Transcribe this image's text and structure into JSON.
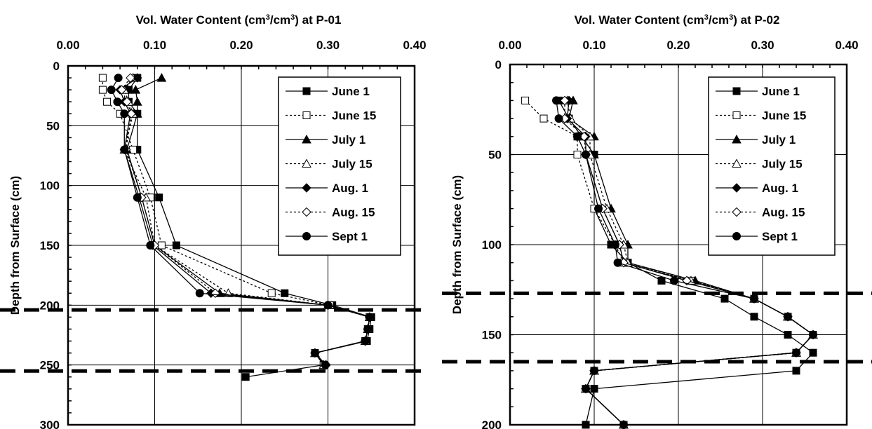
{
  "chart_data": [
    {
      "type": "line",
      "title_main": "Vol. Water Content (cm",
      "title_sup": "3",
      "title_mid": "/cm",
      "title_sup2": "3",
      "title_end": ") at P-01",
      "ylabel": "Depth from Surface (cm)",
      "xlim": [
        0.0,
        0.4
      ],
      "ylim": [
        0,
        300
      ],
      "y_inverted": true,
      "x_axis_position": "top",
      "xticks": [
        "0.00",
        "0.10",
        "0.20",
        "0.30",
        "0.40"
      ],
      "xtick_values": [
        0.0,
        0.1,
        0.2,
        0.3,
        0.4
      ],
      "yticks": [
        "0",
        "50",
        "100",
        "150",
        "200",
        "250",
        "300"
      ],
      "ytick_values": [
        0,
        50,
        100,
        150,
        200,
        250,
        300
      ],
      "grid": true,
      "legend_position": "top-right",
      "dashed_horizontal_lines": [
        204,
        255
      ],
      "series": [
        {
          "name": "June 1",
          "marker": "square",
          "filled": true,
          "dashed": false,
          "x": [
            0.08,
            0.07,
            0.07,
            0.08,
            0.08,
            0.105,
            0.125,
            0.25,
            0.305,
            0.35,
            0.348,
            0.345,
            0.285,
            0.295,
            0.205
          ],
          "y": [
            10,
            20,
            30,
            40,
            70,
            110,
            150,
            190,
            200,
            210,
            220,
            230,
            240,
            250,
            260
          ]
        },
        {
          "name": "June 15",
          "marker": "square",
          "filled": false,
          "dashed": true,
          "x": [
            0.04,
            0.04,
            0.045,
            0.06,
            0.075,
            0.095,
            0.108,
            0.235,
            0.302,
            0.348,
            0.346,
            0.343,
            0.285,
            0.295
          ],
          "y": [
            10,
            20,
            30,
            40,
            70,
            110,
            150,
            190,
            200,
            210,
            220,
            230,
            240,
            250
          ]
        },
        {
          "name": "July 1",
          "marker": "triangle",
          "filled": true,
          "dashed": false,
          "x": [
            0.108,
            0.078,
            0.08,
            0.08,
            0.068,
            0.085,
            0.1,
            0.175,
            0.3,
            0.348,
            0.346,
            0.343,
            0.285,
            0.295
          ],
          "y": [
            10,
            20,
            30,
            40,
            70,
            110,
            150,
            190,
            200,
            210,
            220,
            230,
            240,
            250
          ]
        },
        {
          "name": "July 15",
          "marker": "triangle",
          "filled": false,
          "dashed": true,
          "x": [
            0.075,
            0.065,
            0.07,
            0.075,
            0.065,
            0.09,
            0.1,
            0.185,
            0.3,
            0.348,
            0.346,
            0.343,
            0.285,
            0.295
          ],
          "y": [
            10,
            20,
            30,
            40,
            70,
            110,
            150,
            190,
            200,
            210,
            220,
            230,
            240,
            250
          ]
        },
        {
          "name": "Aug. 1",
          "marker": "diamond",
          "filled": true,
          "dashed": false,
          "x": [
            0.08,
            0.06,
            0.065,
            0.072,
            0.065,
            0.082,
            0.098,
            0.165,
            0.3,
            0.348,
            0.346,
            0.343,
            0.285,
            0.298
          ],
          "y": [
            10,
            20,
            30,
            40,
            70,
            110,
            150,
            190,
            200,
            210,
            220,
            230,
            240,
            250
          ]
        },
        {
          "name": "Aug. 15",
          "marker": "diamond",
          "filled": false,
          "dashed": true,
          "x": [
            0.072,
            0.062,
            0.068,
            0.073,
            0.067,
            0.085,
            0.1,
            0.17,
            0.3,
            0.348,
            0.346,
            0.343,
            0.285,
            0.297
          ],
          "y": [
            10,
            20,
            30,
            40,
            70,
            110,
            150,
            190,
            200,
            210,
            220,
            230,
            240,
            250
          ]
        },
        {
          "name": "Sept 1",
          "marker": "circle",
          "filled": true,
          "dashed": false,
          "x": [
            0.058,
            0.05,
            0.057,
            0.065,
            0.065,
            0.08,
            0.095,
            0.152,
            0.3,
            0.348,
            0.346,
            0.343,
            0.285,
            0.297
          ],
          "y": [
            10,
            20,
            30,
            40,
            70,
            110,
            150,
            190,
            200,
            210,
            220,
            230,
            240,
            250
          ]
        }
      ]
    },
    {
      "type": "line",
      "title_main": "Vol. Water Content (cm",
      "title_sup": "3",
      "title_mid": "/cm",
      "title_sup2": "3",
      "title_end": ") at P-02",
      "ylabel": "Depth from Surface (cm)",
      "xlim": [
        0.0,
        0.4
      ],
      "ylim": [
        0,
        200
      ],
      "y_inverted": true,
      "x_axis_position": "top",
      "xticks": [
        "0.00",
        "0.10",
        "0.20",
        "0.30",
        "0.40"
      ],
      "xtick_values": [
        0.0,
        0.1,
        0.2,
        0.3,
        0.4
      ],
      "yticks": [
        "0",
        "50",
        "100",
        "150",
        "200"
      ],
      "ytick_values": [
        0,
        50,
        100,
        150,
        200
      ],
      "grid": true,
      "legend_position": "top-right",
      "dashed_horizontal_lines": [
        127,
        165
      ],
      "series": [
        {
          "name": "June 1",
          "marker": "square",
          "filled": true,
          "dashed": false,
          "x": [
            0.058,
            0.07,
            0.085,
            0.1,
            0.1,
            0.12,
            0.14,
            0.18,
            0.255,
            0.29,
            0.33,
            0.36,
            0.34,
            0.1,
            0.09,
            0.135
          ],
          "y": [
            20,
            30,
            40,
            50,
            80,
            100,
            110,
            120,
            130,
            140,
            150,
            160,
            170,
            180,
            200,
            200
          ]
        },
        {
          "name": "June 15",
          "marker": "square",
          "filled": false,
          "dashed": true,
          "x": [
            0.018,
            0.04,
            0.08,
            0.08,
            0.1,
            0.125,
            0.135,
            0.215,
            0.29,
            0.33,
            0.36,
            0.34,
            0.1,
            0.09,
            0.135
          ],
          "y": [
            20,
            30,
            40,
            50,
            80,
            100,
            110,
            120,
            130,
            140,
            150,
            160,
            170,
            180,
            200
          ]
        },
        {
          "name": "July 1",
          "marker": "triangle",
          "filled": true,
          "dashed": false,
          "x": [
            0.075,
            0.07,
            0.1,
            0.1,
            0.12,
            0.14,
            0.14,
            0.22,
            0.29,
            0.33,
            0.36,
            0.34,
            0.1,
            0.09,
            0.135
          ],
          "y": [
            20,
            30,
            40,
            50,
            80,
            100,
            110,
            120,
            130,
            140,
            150,
            160,
            170,
            180,
            200
          ]
        },
        {
          "name": "July 15",
          "marker": "triangle",
          "filled": false,
          "dashed": true,
          "x": [
            0.068,
            0.072,
            0.095,
            0.095,
            0.115,
            0.135,
            0.14,
            0.215,
            0.29,
            0.33,
            0.36,
            0.34,
            0.1,
            0.09,
            0.135
          ],
          "y": [
            20,
            30,
            40,
            50,
            80,
            100,
            110,
            120,
            130,
            140,
            150,
            160,
            170,
            180,
            200
          ]
        },
        {
          "name": "Aug. 1",
          "marker": "diamond",
          "filled": true,
          "dashed": false,
          "x": [
            0.07,
            0.068,
            0.09,
            0.09,
            0.11,
            0.13,
            0.135,
            0.21,
            0.29,
            0.33,
            0.36,
            0.34,
            0.1,
            0.09,
            0.135
          ],
          "y": [
            20,
            30,
            40,
            50,
            80,
            100,
            110,
            120,
            130,
            140,
            150,
            160,
            170,
            180,
            200
          ]
        },
        {
          "name": "Aug. 15",
          "marker": "diamond",
          "filled": false,
          "dashed": true,
          "x": [
            0.065,
            0.065,
            0.088,
            0.09,
            0.11,
            0.13,
            0.135,
            0.21,
            0.29,
            0.33,
            0.36,
            0.34,
            0.1,
            0.09,
            0.135
          ],
          "y": [
            20,
            30,
            40,
            50,
            80,
            100,
            110,
            120,
            130,
            140,
            150,
            160,
            170,
            180,
            200
          ]
        },
        {
          "name": "Sept 1",
          "marker": "circle",
          "filled": true,
          "dashed": false,
          "x": [
            0.055,
            0.058,
            0.08,
            0.09,
            0.105,
            0.125,
            0.128,
            0.195,
            0.29,
            0.33,
            0.36,
            0.34,
            0.1,
            0.09,
            0.135
          ],
          "y": [
            20,
            30,
            40,
            50,
            80,
            100,
            110,
            120,
            130,
            140,
            150,
            160,
            170,
            180,
            200
          ]
        }
      ]
    }
  ]
}
